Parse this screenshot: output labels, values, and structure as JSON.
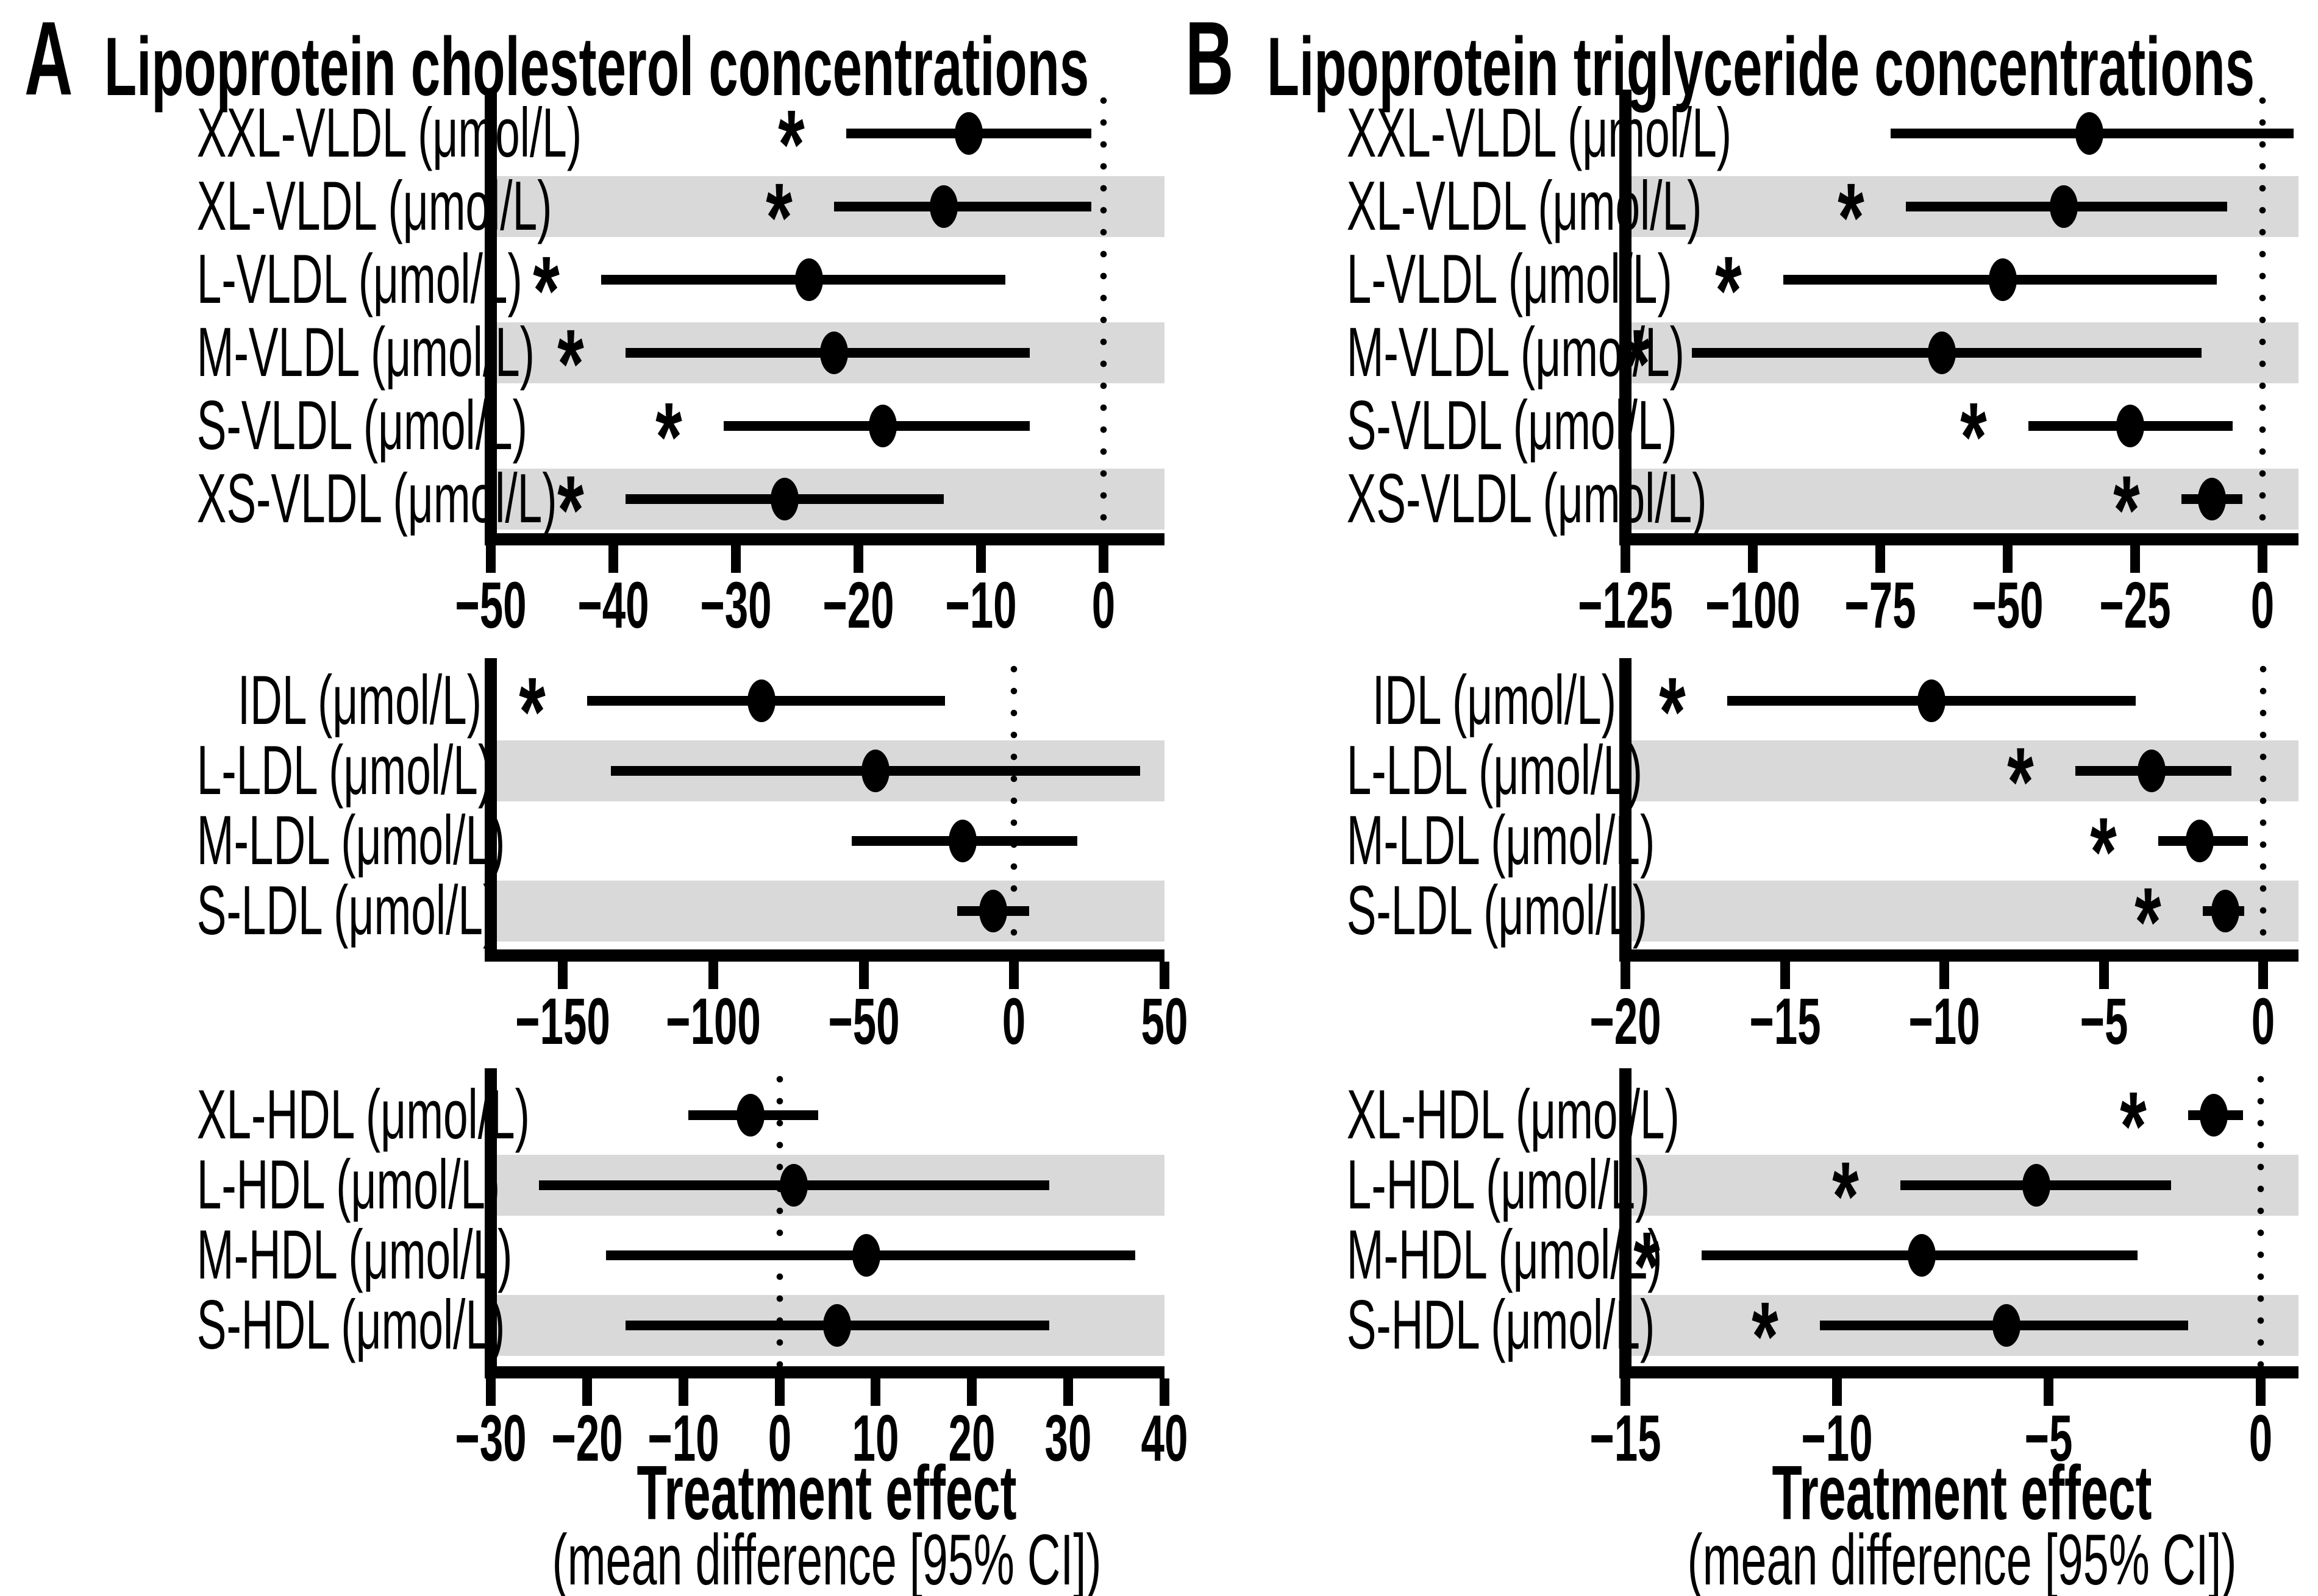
{
  "figure": {
    "background_color": "#ffffff",
    "ink_color": "#000000",
    "band_color": "#d9d9d9",
    "significance_marker": "*",
    "marker_shape": "filled-ellipse",
    "error_bar": "95% CI horizontal line"
  },
  "chart_data": [
    {
      "type": "forest",
      "panel_letter": "A",
      "title": "Lipoprotein cholesterol concentrations",
      "x_axis_title": "Treatment effect",
      "x_axis_subtitle": "(mean difference  [95% CI])",
      "legend_position": "none",
      "grid": false,
      "subplots": [
        {
          "xlim": [
            -50,
            5
          ],
          "zero_line": 0,
          "ticks": [
            -50,
            -40,
            -30,
            -20,
            -10,
            0
          ],
          "rows": [
            {
              "label": "XXL-VLDL (μmol/L)",
              "mean": -11,
              "ci_low": -21,
              "ci_high": -1,
              "significant": true,
              "shaded": false
            },
            {
              "label": "XL-VLDL (μmol/L)",
              "mean": -13,
              "ci_low": -22,
              "ci_high": -1,
              "significant": true,
              "shaded": true
            },
            {
              "label": "L-VLDL (μmol/L)",
              "mean": -24,
              "ci_low": -41,
              "ci_high": -8,
              "significant": true,
              "shaded": false
            },
            {
              "label": "M-VLDL (μmol/L)",
              "mean": -22,
              "ci_low": -39,
              "ci_high": -6,
              "significant": true,
              "shaded": true
            },
            {
              "label": "S-VLDL (μmol/L)",
              "mean": -18,
              "ci_low": -31,
              "ci_high": -6,
              "significant": true,
              "shaded": false
            },
            {
              "label": "XS-VLDL (μmol/L)",
              "mean": -26,
              "ci_low": -39,
              "ci_high": -13,
              "significant": true,
              "shaded": true
            }
          ]
        },
        {
          "xlim": [
            -174,
            50
          ],
          "zero_line": 0,
          "ticks": [
            -150,
            -100,
            -50,
            0,
            50
          ],
          "rows": [
            {
              "label": "IDL (μmol/L)",
              "mean": -84,
              "ci_low": -142,
              "ci_high": -23,
              "significant": true,
              "shaded": false
            },
            {
              "label": "L-LDL (μmol/L)",
              "mean": -46,
              "ci_low": -134,
              "ci_high": 42,
              "significant": false,
              "shaded": true
            },
            {
              "label": "M-LDL (μmol/L)",
              "mean": -17,
              "ci_low": -54,
              "ci_high": 21,
              "significant": false,
              "shaded": false
            },
            {
              "label": "S-LDL (μmol/L)",
              "mean": -7,
              "ci_low": -19,
              "ci_high": 5,
              "significant": false,
              "shaded": true
            }
          ]
        },
        {
          "xlim": [
            -30,
            40
          ],
          "zero_line": 0,
          "ticks": [
            -30,
            -20,
            -10,
            0,
            10,
            20,
            30,
            40
          ],
          "rows": [
            {
              "label": "XL-HDL (μmol/L)",
              "mean": -3,
              "ci_low": -9.5,
              "ci_high": 4,
              "significant": false,
              "shaded": false
            },
            {
              "label": "L-HDL (μmol/L)",
              "mean": 1.5,
              "ci_low": -25,
              "ci_high": 28,
              "significant": false,
              "shaded": true
            },
            {
              "label": "M-HDL (μmol/L)",
              "mean": 9,
              "ci_low": -18,
              "ci_high": 37,
              "significant": false,
              "shaded": false
            },
            {
              "label": "S-HDL (μmol/L)",
              "mean": 6,
              "ci_low": -16,
              "ci_high": 28,
              "significant": false,
              "shaded": true
            }
          ]
        }
      ]
    },
    {
      "type": "forest",
      "panel_letter": "B",
      "title": "Lipoprotein triglyceride concentrations",
      "x_axis_title": "Treatment effect",
      "x_axis_subtitle": "(mean difference  [95% CI])",
      "legend_position": "none",
      "grid": false,
      "subplots": [
        {
          "xlim": [
            -125,
            7
          ],
          "zero_line": 0,
          "ticks": [
            -125,
            -100,
            -75,
            -50,
            -25,
            0
          ],
          "rows": [
            {
              "label": "XXL-VLDL (μmol/L)",
              "mean": -34,
              "ci_low": -73,
              "ci_high": 6,
              "significant": false,
              "shaded": false
            },
            {
              "label": "XL-VLDL (μmol/L)",
              "mean": -39,
              "ci_low": -70,
              "ci_high": -7,
              "significant": true,
              "shaded": true
            },
            {
              "label": "L-VLDL (μmol/L)",
              "mean": -51,
              "ci_low": -94,
              "ci_high": -9,
              "significant": true,
              "shaded": false
            },
            {
              "label": "M-VLDL (μmol/L)",
              "mean": -63,
              "ci_low": -112,
              "ci_high": -12,
              "significant": true,
              "shaded": true
            },
            {
              "label": "S-VLDL (μmol/L)",
              "mean": -26,
              "ci_low": -46,
              "ci_high": -6,
              "significant": true,
              "shaded": false
            },
            {
              "label": "XS-VLDL (μmol/L)",
              "mean": -10,
              "ci_low": -16,
              "ci_high": -4,
              "significant": true,
              "shaded": true
            }
          ]
        },
        {
          "xlim": [
            -20,
            1.1
          ],
          "zero_line": 0,
          "ticks": [
            -20,
            -15,
            -10,
            -5,
            0
          ],
          "rows": [
            {
              "label": "IDL (μmol/L)",
              "mean": -10.4,
              "ci_low": -16.8,
              "ci_high": -4,
              "significant": true,
              "shaded": false
            },
            {
              "label": "L-LDL (μmol/L)",
              "mean": -3.5,
              "ci_low": -5.9,
              "ci_high": -1,
              "significant": true,
              "shaded": true
            },
            {
              "label": "M-LDL (μmol/L)",
              "mean": -2,
              "ci_low": -3.3,
              "ci_high": -0.5,
              "significant": true,
              "shaded": false
            },
            {
              "label": "S-LDL (μmol/L)",
              "mean": -1.2,
              "ci_low": -1.9,
              "ci_high": -0.6,
              "significant": true,
              "shaded": true
            }
          ]
        },
        {
          "xlim": [
            -15,
            0.9
          ],
          "zero_line": 0,
          "ticks": [
            -15,
            -10,
            -5,
            0
          ],
          "rows": [
            {
              "label": "XL-HDL (μmol/L)",
              "mean": -1.1,
              "ci_low": -1.7,
              "ci_high": -0.4,
              "significant": true,
              "shaded": false
            },
            {
              "label": "L-HDL (μmol/L)",
              "mean": -5.3,
              "ci_low": -8.5,
              "ci_high": -2.1,
              "significant": true,
              "shaded": true
            },
            {
              "label": "M-HDL (μmol/L)",
              "mean": -8,
              "ci_low": -13.2,
              "ci_high": -2.9,
              "significant": true,
              "shaded": false
            },
            {
              "label": "S-HDL (μmol/L)",
              "mean": -6,
              "ci_low": -10.4,
              "ci_high": -1.7,
              "significant": true,
              "shaded": true
            }
          ]
        }
      ]
    }
  ]
}
